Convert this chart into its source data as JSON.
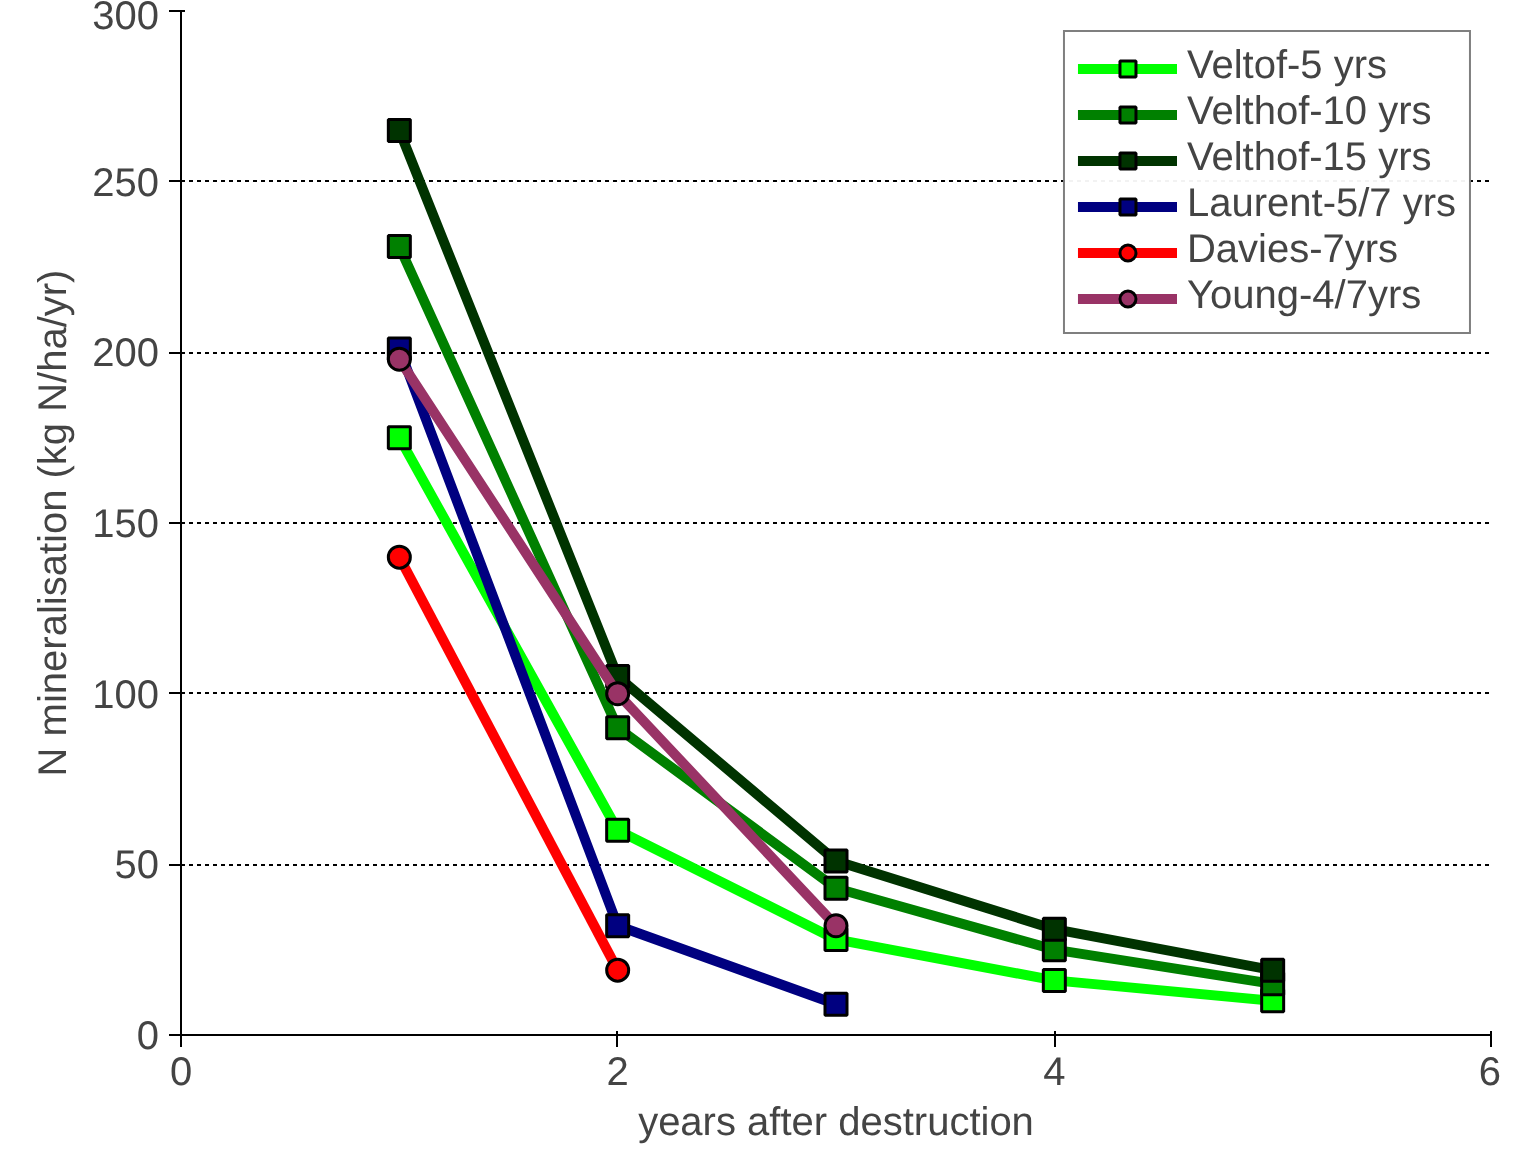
{
  "chart_data": {
    "type": "line",
    "xlabel": "years after destruction",
    "ylabel": "N mineralisation (kg N/ha/yr)",
    "xlim": [
      0,
      6
    ],
    "xticks": [
      0,
      2,
      4,
      6
    ],
    "ylim": [
      0,
      300
    ],
    "yticks": [
      0,
      50,
      100,
      150,
      200,
      250,
      300
    ],
    "grid": "y",
    "legend": "top right",
    "line_style": "solid",
    "series": [
      {
        "name": "Veltof-5 yrs",
        "color": "#00ff00",
        "marker": "square",
        "x": [
          1,
          2,
          3,
          4,
          5
        ],
        "values": [
          175,
          60,
          28,
          16,
          10
        ]
      },
      {
        "name": "Velthof-10 yrs",
        "color": "#008000",
        "marker": "square",
        "x": [
          1,
          2,
          3,
          4,
          5
        ],
        "values": [
          231,
          90,
          43,
          25,
          15
        ]
      },
      {
        "name": "Velthof-15 yrs",
        "color": "#003300",
        "marker": "square",
        "x": [
          1,
          2,
          3,
          4,
          5
        ],
        "values": [
          265,
          105,
          51,
          31,
          19
        ]
      },
      {
        "name": "Laurent-5/7 yrs",
        "color": "#000080",
        "marker": "square",
        "x": [
          1,
          2,
          3
        ],
        "values": [
          201,
          32,
          9
        ]
      },
      {
        "name": "Davies-7yrs",
        "color": "#ff0000",
        "marker": "circle",
        "x": [
          1,
          2
        ],
        "values": [
          140,
          19
        ]
      },
      {
        "name": "Young-4/7yrs",
        "color": "#993366",
        "marker": "circle",
        "x": [
          1,
          2,
          3
        ],
        "values": [
          198,
          100,
          32
        ]
      }
    ]
  }
}
